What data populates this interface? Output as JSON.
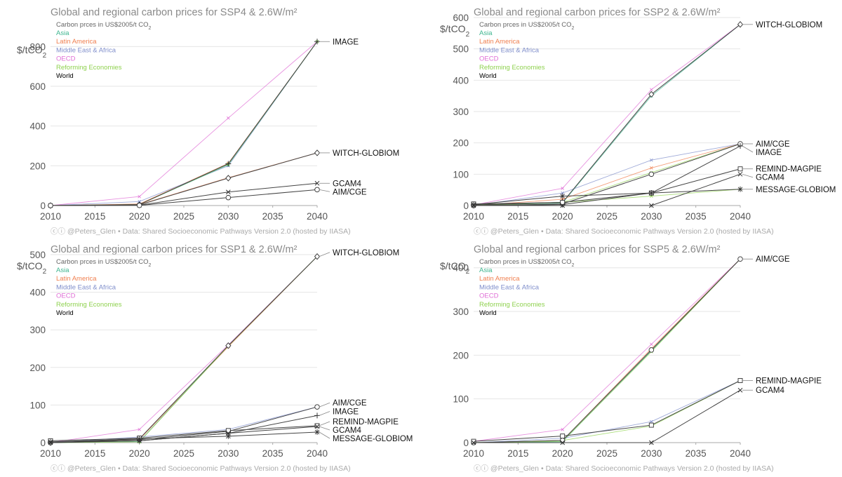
{
  "legend_entries": [
    {
      "name": "Asia",
      "color": "#3fb58f"
    },
    {
      "name": "Latin America",
      "color": "#f07f4f"
    },
    {
      "name": "Middle East & Africa",
      "color": "#7f8ecb"
    },
    {
      "name": "OECD",
      "color": "#e06fd6"
    },
    {
      "name": "Reforming Economies",
      "color": "#8fd14f"
    },
    {
      "name": "World",
      "color": "#000000"
    }
  ],
  "chart_data": [
    {
      "type": "line",
      "title": "Global and regional carbon prices for SSP4 & 2.6W/m²",
      "legend_title": "Carbon prces in US$2005/t CO",
      "legend_title_sub": "2",
      "ylabel": "$/tCO",
      "ylabel_sub": "2",
      "x": [
        2010,
        2020,
        2030,
        2040
      ],
      "xlim": [
        2010,
        2040
      ],
      "xticks": [
        2010,
        2015,
        2020,
        2025,
        2030,
        2035,
        2040
      ],
      "ylim": [
        0,
        840
      ],
      "yticks": [
        0,
        200,
        400,
        600,
        800
      ],
      "footer_handle": "@Peters_Glen",
      "footer_source": "Data: Shared Socioeconomic Pathways Version 2.0 (hosted by IIASA)",
      "models": [
        {
          "name": "IMAGE",
          "marker": "plus",
          "values": [
            0,
            5,
            210,
            825
          ]
        },
        {
          "name": "WITCH-GLOBIOM",
          "marker": "diamond",
          "values": [
            0,
            3,
            138,
            265
          ]
        },
        {
          "name": "GCAM4",
          "marker": "x",
          "values": [
            0,
            2,
            68,
            112
          ]
        },
        {
          "name": "AIM/CGE",
          "marker": "circle",
          "values": [
            0,
            1,
            40,
            80
          ]
        }
      ],
      "regional": [
        {
          "region": "OECD",
          "values": [
            0,
            45,
            440,
            825
          ]
        },
        {
          "region": "Latin America",
          "values": [
            0,
            8,
            212,
            825
          ]
        },
        {
          "region": "Middle East & Africa",
          "values": [
            0,
            20,
            200,
            825
          ]
        },
        {
          "region": "Asia",
          "values": [
            0,
            5,
            205,
            825
          ]
        },
        {
          "region": "Reforming Economies",
          "values": [
            0,
            5,
            208,
            825
          ]
        },
        {
          "region": "Latin America",
          "values": [
            0,
            5,
            140,
            265
          ]
        }
      ]
    },
    {
      "type": "line",
      "title": "Global and regional carbon prices for SSP2 & 2.6W/m²",
      "legend_title": "Carbon prces in US$2005/t CO",
      "legend_title_sub": "2",
      "ylabel": "$/tCO",
      "ylabel_sub": "2",
      "x": [
        2010,
        2020,
        2030,
        2040
      ],
      "xlim": [
        2010,
        2040
      ],
      "xticks": [
        2010,
        2015,
        2020,
        2025,
        2030,
        2035,
        2040
      ],
      "ylim": [
        0,
        600
      ],
      "yticks": [
        0,
        100,
        200,
        300,
        400,
        500,
        600
      ],
      "footer_handle": "@Peters_Glen",
      "footer_source": "Data: Shared Socioeconomic Pathways Version 2.0 (hosted by IIASA)",
      "models": [
        {
          "name": "WITCH-GLOBIOM",
          "marker": "diamond",
          "values": [
            2,
            10,
            355,
            578
          ]
        },
        {
          "name": "AIM/CGE",
          "marker": "circle",
          "values": [
            0,
            5,
            100,
            197
          ]
        },
        {
          "name": "IMAGE",
          "marker": "plus",
          "values": [
            0,
            3,
            40,
            190
          ]
        },
        {
          "name": "REMIND-MAGPIE",
          "marker": "square",
          "values": [
            5,
            10,
            40,
            117
          ]
        },
        {
          "name": "GCAM4",
          "marker": "x",
          "values": [
            0,
            0,
            0,
            100
          ]
        },
        {
          "name": "MESSAGE-GLOBIOM",
          "marker": "star",
          "values": [
            3,
            30,
            40,
            52
          ]
        }
      ],
      "regional": [
        {
          "region": "OECD",
          "values": [
            2,
            55,
            370,
            578
          ]
        },
        {
          "region": "Asia",
          "values": [
            2,
            8,
            350,
            578
          ]
        },
        {
          "region": "Middle East & Africa",
          "values": [
            0,
            40,
            145,
            197
          ]
        },
        {
          "region": "Latin America",
          "values": [
            0,
            20,
            120,
            197
          ]
        },
        {
          "region": "Reforming Economies",
          "values": [
            0,
            10,
            105,
            197
          ]
        },
        {
          "region": "Reforming Economies",
          "values": [
            3,
            10,
            30,
            52
          ]
        }
      ]
    },
    {
      "type": "line",
      "title": "Global and regional carbon prices for SSP1 & 2.6W/m²",
      "legend_title": "Carbon prces in US$2005/t CO",
      "legend_title_sub": "2",
      "ylabel": "$/tCO",
      "ylabel_sub": "2",
      "x": [
        2010,
        2020,
        2030,
        2040
      ],
      "xlim": [
        2010,
        2040
      ],
      "xticks": [
        2010,
        2015,
        2020,
        2025,
        2030,
        2035,
        2040
      ],
      "ylim": [
        0,
        500
      ],
      "yticks": [
        0,
        100,
        200,
        300,
        400,
        500
      ],
      "footer_handle": "@Peters_Glen",
      "footer_source": "Data: Shared Socioeconomic Pathways Version 2.0 (hosted by IIASA)",
      "models": [
        {
          "name": "WITCH-GLOBIOM",
          "marker": "diamond",
          "values": [
            0,
            10,
            258,
            495
          ]
        },
        {
          "name": "AIM/CGE",
          "marker": "circle",
          "values": [
            0,
            8,
            30,
            95
          ]
        },
        {
          "name": "IMAGE",
          "marker": "plus",
          "values": [
            0,
            5,
            25,
            72
          ]
        },
        {
          "name": "REMIND-MAGPIE",
          "marker": "square",
          "values": [
            5,
            12,
            32,
            45
          ]
        },
        {
          "name": "GCAM4",
          "marker": "x",
          "values": [
            0,
            5,
            25,
            43
          ]
        },
        {
          "name": "MESSAGE-GLOBIOM",
          "marker": "star",
          "values": [
            2,
            10,
            17,
            28
          ]
        }
      ],
      "regional": [
        {
          "region": "OECD",
          "values": [
            0,
            35,
            260,
            495
          ]
        },
        {
          "region": "Latin America",
          "values": [
            0,
            8,
            255,
            495
          ]
        },
        {
          "region": "Asia",
          "values": [
            0,
            3,
            258,
            495
          ]
        },
        {
          "region": "Reforming Economies",
          "values": [
            0,
            2,
            257,
            495
          ]
        },
        {
          "region": "Middle East & Africa",
          "values": [
            0,
            15,
            35,
            95
          ]
        }
      ]
    },
    {
      "type": "line",
      "title": "Global and regional carbon prices for SSP5 & 2.6W/m²",
      "legend_title": "Carbon prces in US$2005/t CO",
      "legend_title_sub": "2",
      "ylabel": "$/tCO",
      "ylabel_sub": "2",
      "x": [
        2010,
        2020,
        2030,
        2040
      ],
      "xlim": [
        2010,
        2040
      ],
      "xticks": [
        2010,
        2015,
        2020,
        2025,
        2030,
        2035,
        2040
      ],
      "ylim": [
        0,
        430
      ],
      "yticks": [
        0,
        100,
        200,
        300,
        400
      ],
      "footer_handle": "@Peters_Glen",
      "footer_source": "Data: Shared Socioeconomic Pathways Version 2.0 (hosted by IIASA)",
      "models": [
        {
          "name": "AIM/CGE",
          "marker": "circle",
          "values": [
            0,
            5,
            212,
            420
          ]
        },
        {
          "name": "REMIND-MAGPIE",
          "marker": "square",
          "values": [
            3,
            15,
            40,
            142
          ]
        },
        {
          "name": "GCAM4",
          "marker": "x",
          "values": [
            0,
            0,
            0,
            120
          ]
        }
      ],
      "regional": [
        {
          "region": "OECD",
          "values": [
            3,
            30,
            225,
            420
          ]
        },
        {
          "region": "Latin America",
          "values": [
            0,
            5,
            215,
            420
          ]
        },
        {
          "region": "Asia",
          "values": [
            0,
            2,
            210,
            420
          ]
        },
        {
          "region": "Reforming Economies",
          "values": [
            0,
            3,
            208,
            420
          ]
        },
        {
          "region": "Middle East & Africa",
          "values": [
            0,
            10,
            48,
            142
          ]
        },
        {
          "region": "Reforming Economies",
          "values": [
            0,
            5,
            38,
            142
          ]
        }
      ]
    }
  ]
}
